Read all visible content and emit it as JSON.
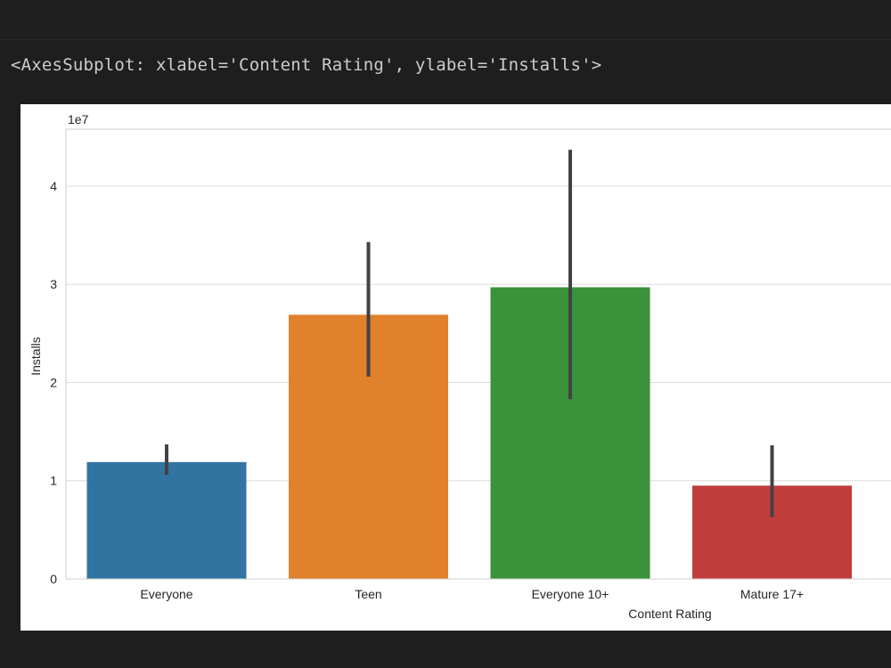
{
  "output": {
    "repr": "<AxesSubplot: xlabel='Content Rating', ylabel='Installs'>"
  },
  "chart_data": {
    "type": "bar",
    "categories": [
      "Everyone",
      "Teen",
      "Everyone 10+",
      "Mature 17+"
    ],
    "values": [
      11900000,
      26900000,
      29700000,
      9500000
    ],
    "error_bars": [
      [
        10600000,
        13700000
      ],
      [
        20600000,
        34300000
      ],
      [
        18300000,
        43700000
      ],
      [
        6300000,
        13600000
      ]
    ],
    "colors": [
      "#3274a1",
      "#e1812c",
      "#3a923a",
      "#c03d3e"
    ],
    "xlabel": "Content Rating",
    "ylabel": "Installs",
    "offset_label": "1e7",
    "yticks": [
      0,
      1,
      2,
      3,
      4
    ],
    "ytick_scale": 10000000,
    "ylim": [
      0,
      45800000
    ],
    "grid": true
  }
}
